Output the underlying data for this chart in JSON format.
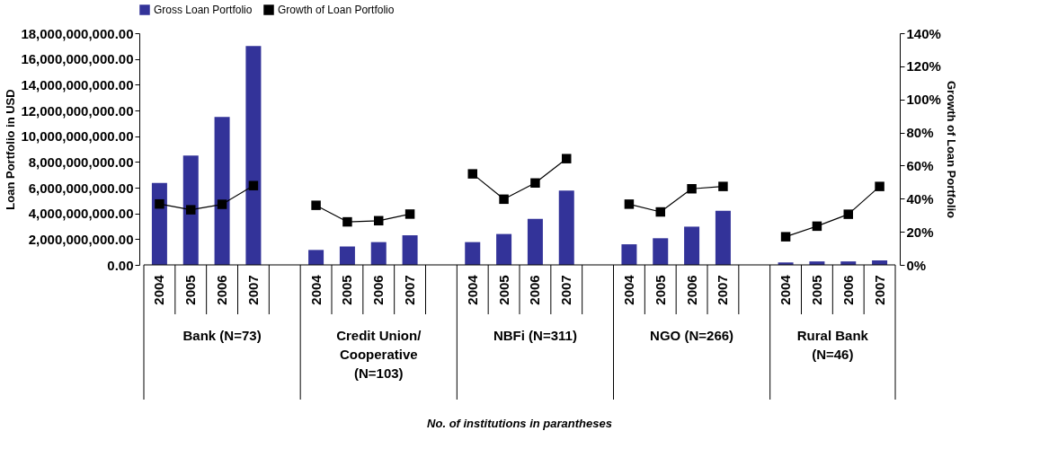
{
  "chart_data": {
    "type": "bar",
    "categories": [
      "2004",
      "2005",
      "2006",
      "2007",
      null,
      "2004",
      "2005",
      "2006",
      "2007",
      null,
      "2004",
      "2005",
      "2006",
      "2007",
      null,
      "2004",
      "2005",
      "2006",
      "2007",
      null,
      "2004",
      "2005",
      "2006",
      "2007"
    ],
    "series": [
      {
        "name": "Gross Loan Portfolio",
        "color": "#333399",
        "values": [
          6370000000.0,
          8500000000.0,
          11500000000.0,
          17000000000.0,
          null,
          1160000000.0,
          1430000000.0,
          1770000000.0,
          2300000000.0,
          null,
          1770000000.0,
          2400000000.0,
          3570000000.0,
          5780000000.0,
          null,
          1600000000.0,
          2070000000.0,
          2970000000.0,
          4200000000.0,
          null,
          190000000.0,
          270000000.0,
          270000000.0,
          350000000.0
        ]
      },
      {
        "name": "Growth of Loan Portfolio",
        "type": "line",
        "axis": "y2",
        "color": "#000000",
        "marker": "square",
        "values": [
          36.8,
          33.3,
          36.6,
          47.9,
          null,
          36,
          26,
          26.7,
          30.7,
          null,
          55,
          39.7,
          49.5,
          64.2,
          null,
          36.7,
          32,
          46,
          47.4,
          null,
          17,
          23.4,
          30.6,
          47.4
        ]
      }
    ],
    "ylabel": "Loan Portfolio in USD",
    "y2label": "Growth of Loan Portfolio",
    "ylim": [
      0,
      18000000000
    ],
    "yticks": [
      {
        "value": 0,
        "label": "0.00"
      },
      {
        "value": 2000000000,
        "label": "2,000,000,000.00"
      },
      {
        "value": 4000000000,
        "label": "4,000,000,000.00"
      },
      {
        "value": 6000000000,
        "label": "6,000,000,000.00"
      },
      {
        "value": 8000000000,
        "label": "8,000,000,000.00"
      },
      {
        "value": 10000000000,
        "label": "10,000,000,000.00"
      },
      {
        "value": 12000000000,
        "label": "12,000,000,000.00"
      },
      {
        "value": 14000000000,
        "label": "14,000,000,000.00"
      },
      {
        "value": 16000000000,
        "label": "16,000,000,000.00"
      },
      {
        "value": 18000000000,
        "label": "18,000,000,000.00"
      }
    ],
    "y2lim": [
      0,
      140
    ],
    "y2ticks": [
      {
        "value": 0,
        "label": "0%"
      },
      {
        "value": 20,
        "label": "20%"
      },
      {
        "value": 40,
        "label": "40%"
      },
      {
        "value": 60,
        "label": "60%"
      },
      {
        "value": 80,
        "label": "80%"
      },
      {
        "value": 100,
        "label": "100%"
      },
      {
        "value": 120,
        "label": "120%"
      },
      {
        "value": 140,
        "label": "140%"
      }
    ],
    "annotations": [
      "Bank (N=73)",
      "Credit Union/\nCooperative\n(N=103)",
      "NBFi (N=311)",
      "NGO (N=266)",
      "Rural Bank\n(N=46)",
      "No. of institutions in parantheses"
    ],
    "legend": "top",
    "grid": false
  }
}
